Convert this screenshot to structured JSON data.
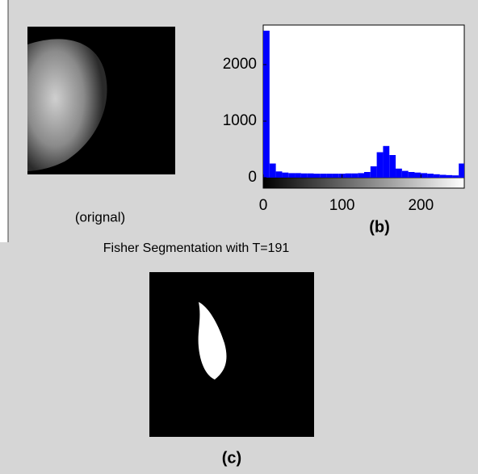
{
  "chart_data": {
    "type": "histogram",
    "bins": [
      0,
      8,
      16,
      24,
      32,
      40,
      48,
      56,
      64,
      72,
      80,
      88,
      96,
      104,
      112,
      120,
      128,
      136,
      144,
      152,
      160,
      168,
      176,
      184,
      192,
      200,
      208,
      216,
      224,
      232,
      240,
      248,
      256
    ],
    "values": [
      2600,
      250,
      110,
      90,
      80,
      80,
      75,
      75,
      70,
      70,
      70,
      70,
      70,
      75,
      75,
      80,
      100,
      200,
      450,
      560,
      400,
      160,
      120,
      100,
      90,
      80,
      70,
      60,
      50,
      45,
      40,
      250
    ],
    "color": "#0000ff",
    "xlim": [
      0,
      255
    ],
    "xticks": [
      0,
      100,
      200
    ],
    "ylim": [
      0,
      2700
    ],
    "yticks": [
      0,
      1000,
      2000
    ]
  },
  "original_caption": "(orignal)",
  "histogram_caption": "(b)",
  "segmentation_title": "Fisher Segmentation with T=191",
  "segmentation_caption": "(c)"
}
